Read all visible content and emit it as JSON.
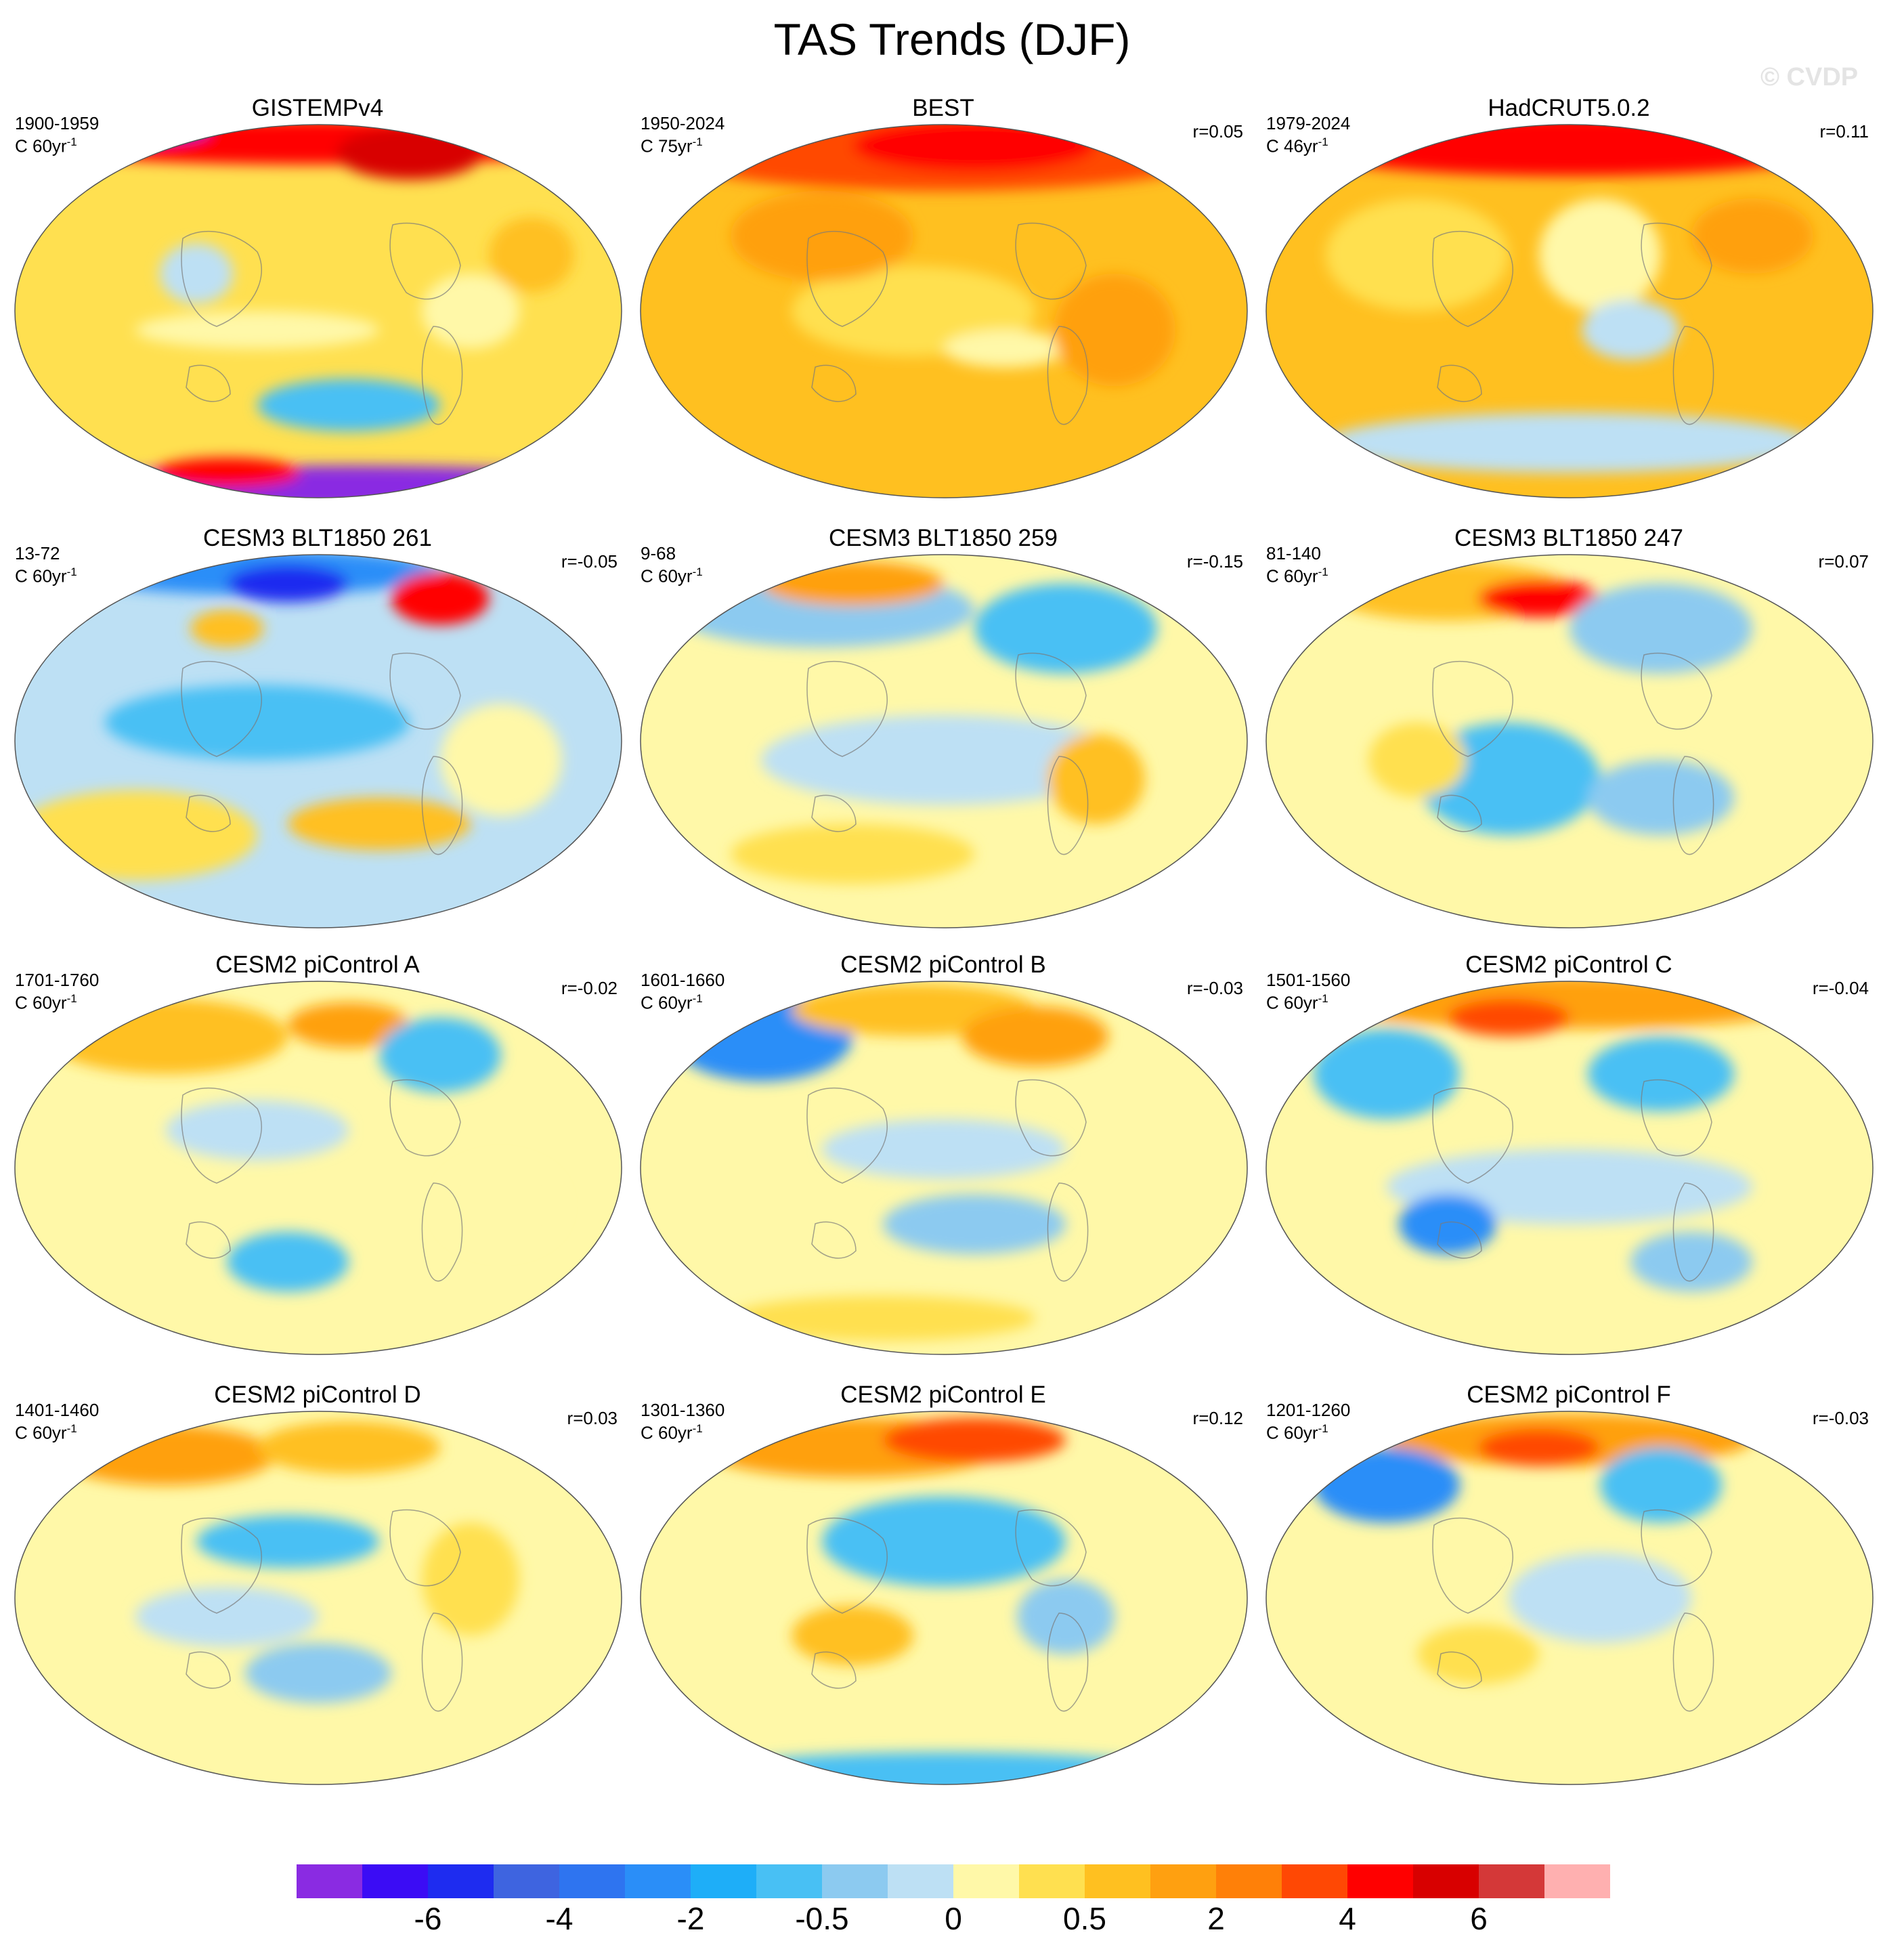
{
  "figure": {
    "title": "TAS Trends (DJF)",
    "watermark": "© CVDP"
  },
  "chart_data": {
    "type": "heatmap",
    "title": "TAS Trends (DJF)",
    "variable": "TAS (near-surface air temperature) trend, DJF season",
    "projection": "global map",
    "panels": [
      {
        "id": "gistemp",
        "title": "GISTEMPv4",
        "period": "1900-1959",
        "units_prefix": "C 60yr",
        "units_exp": "-1",
        "corr": "",
        "pattern": "obs1"
      },
      {
        "id": "best",
        "title": "BEST",
        "period": "1950-2024",
        "units_prefix": "C 75yr",
        "units_exp": "-1",
        "corr": "r=0.05",
        "pattern": "obs2"
      },
      {
        "id": "hadcrut",
        "title": "HadCRUT5.0.2",
        "period": "1979-2024",
        "units_prefix": "C 46yr",
        "units_exp": "-1",
        "corr": "r=0.11",
        "pattern": "obs3"
      },
      {
        "id": "cesm3-261",
        "title": "CESM3 BLT1850 261",
        "period": "13-72",
        "units_prefix": "C 60yr",
        "units_exp": "-1",
        "corr": "r=-0.05",
        "pattern": "m1"
      },
      {
        "id": "cesm3-259",
        "title": "CESM3 BLT1850 259",
        "period": "9-68",
        "units_prefix": "C 60yr",
        "units_exp": "-1",
        "corr": "r=-0.15",
        "pattern": "m2"
      },
      {
        "id": "cesm3-247",
        "title": "CESM3 BLT1850 247",
        "period": "81-140",
        "units_prefix": "C 60yr",
        "units_exp": "-1",
        "corr": "r=0.07",
        "pattern": "m3"
      },
      {
        "id": "cesm2-a",
        "title": "CESM2 piControl A",
        "period": "1701-1760",
        "units_prefix": "C 60yr",
        "units_exp": "-1",
        "corr": "r=-0.02",
        "pattern": "m4"
      },
      {
        "id": "cesm2-b",
        "title": "CESM2 piControl B",
        "period": "1601-1660",
        "units_prefix": "C 60yr",
        "units_exp": "-1",
        "corr": "r=-0.03",
        "pattern": "m5"
      },
      {
        "id": "cesm2-c",
        "title": "CESM2 piControl C",
        "period": "1501-1560",
        "units_prefix": "C 60yr",
        "units_exp": "-1",
        "corr": "r=-0.04",
        "pattern": "m6"
      },
      {
        "id": "cesm2-d",
        "title": "CESM2 piControl D",
        "period": "1401-1460",
        "units_prefix": "C 60yr",
        "units_exp": "-1",
        "corr": "r=0.03",
        "pattern": "m7"
      },
      {
        "id": "cesm2-e",
        "title": "CESM2 piControl E",
        "period": "1301-1360",
        "units_prefix": "C 60yr",
        "units_exp": "-1",
        "corr": "r=0.12",
        "pattern": "m8"
      },
      {
        "id": "cesm2-f",
        "title": "CESM2 piControl F",
        "period": "1201-1260",
        "units_prefix": "C 60yr",
        "units_exp": "-1",
        "corr": "r=-0.03",
        "pattern": "m9"
      }
    ],
    "colorbar": {
      "colors": [
        "#8a2be2",
        "#3b0cf5",
        "#1e2cf0",
        "#3e64e0",
        "#2e74f0",
        "#2a8ef8",
        "#1eaef8",
        "#48c0f4",
        "#8ccaf0",
        "#bde0f4",
        "#fff8a8",
        "#ffe050",
        "#ffc020",
        "#ffa010",
        "#ff8008",
        "#ff4804",
        "#ff0000",
        "#d80000",
        "#d43838",
        "#ffb0b0"
      ],
      "tick_labels": [
        "-6",
        "-4",
        "-2",
        "-0.5",
        "0",
        "0.5",
        "2",
        "4",
        "6"
      ],
      "tick_boundary_index": [
        2,
        4,
        6,
        8,
        10,
        12,
        14,
        16,
        18
      ]
    }
  }
}
